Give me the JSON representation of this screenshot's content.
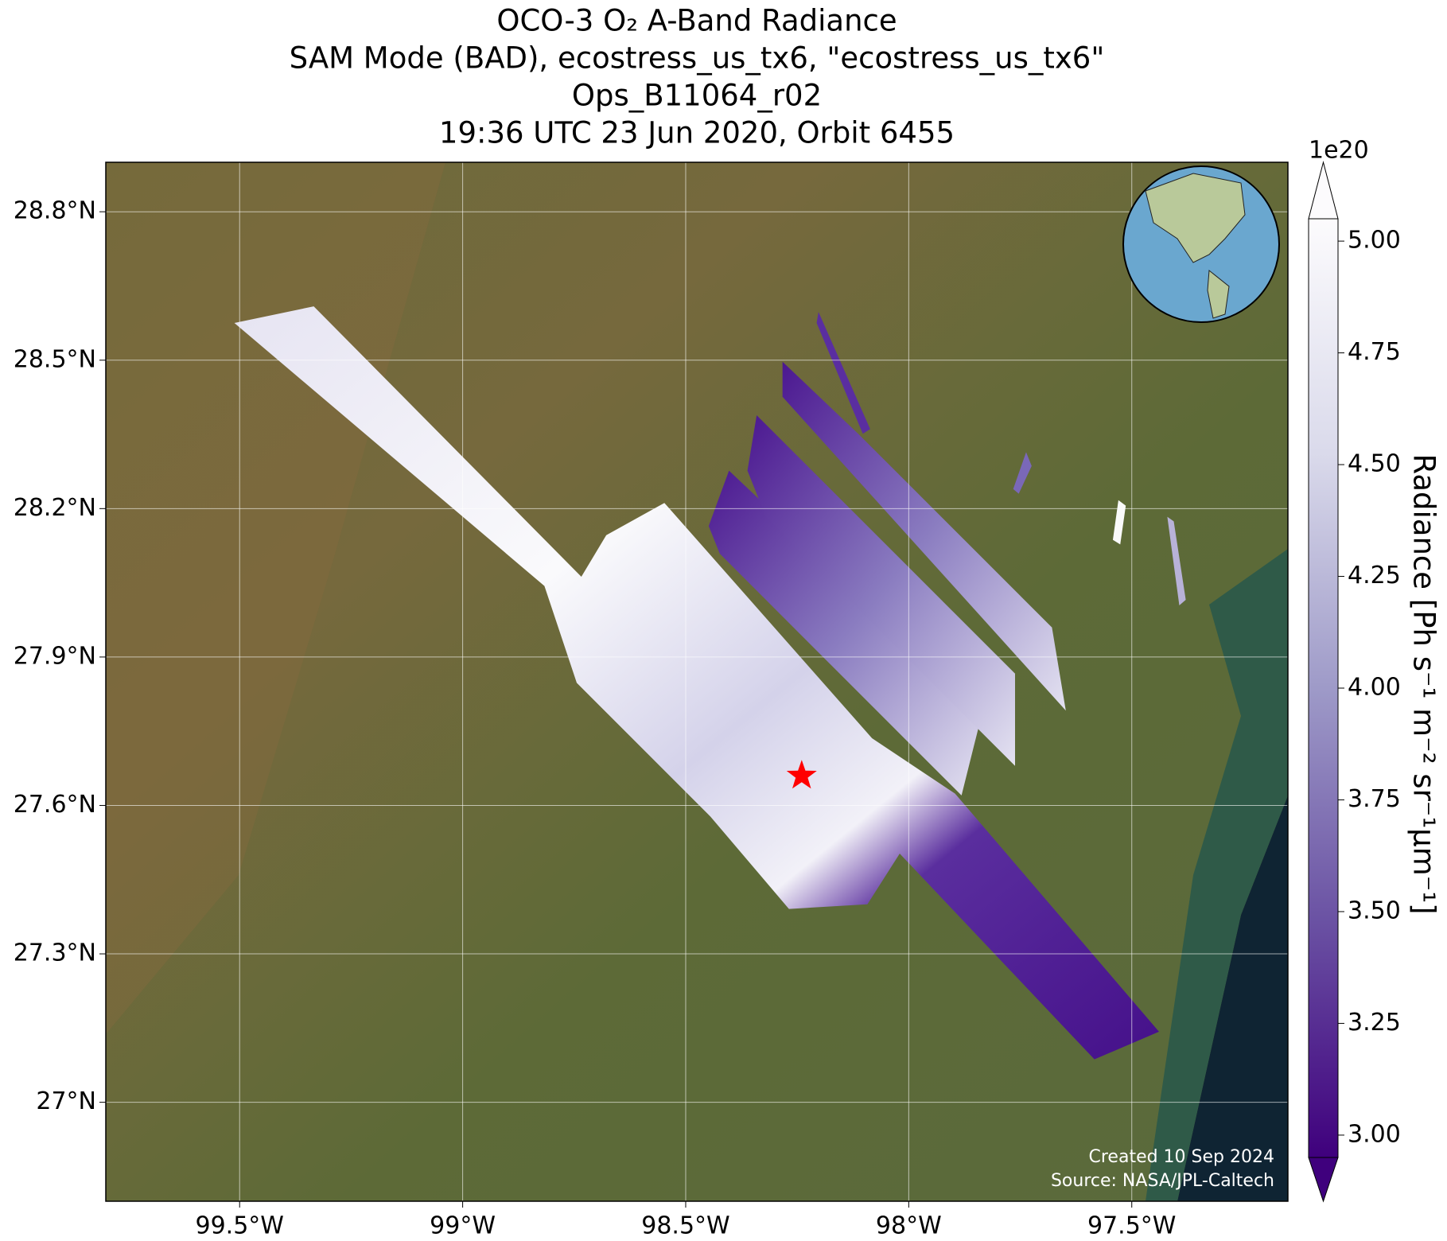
{
  "chart_data": {
    "type": "map",
    "title": [
      "OCO-3 O₂ A-Band Radiance",
      "SAM Mode (BAD), ecostress_us_tx6, \"ecostress_us_tx6\"",
      "Ops_B11064_r02",
      "19:36 UTC 23 Jun 2020, Orbit 6455"
    ],
    "xlim": [
      -99.8,
      -97.15
    ],
    "ylim": [
      26.8,
      28.9
    ],
    "xticks": [
      {
        "value": -99.5,
        "label": "99.5°W"
      },
      {
        "value": -99,
        "label": "99°W"
      },
      {
        "value": -98.5,
        "label": "98.5°W"
      },
      {
        "value": -98,
        "label": "98°W"
      },
      {
        "value": -97.5,
        "label": "97.5°W"
      }
    ],
    "yticks": [
      {
        "value": 27,
        "label": "27°N"
      },
      {
        "value": 27.3,
        "label": "27.3°N"
      },
      {
        "value": 27.6,
        "label": "27.6°N"
      },
      {
        "value": 27.9,
        "label": "27.9°N"
      },
      {
        "value": 28.2,
        "label": "28.2°N"
      },
      {
        "value": 28.5,
        "label": "28.5°N"
      },
      {
        "value": 28.8,
        "label": "28.8°N"
      }
    ],
    "grid": true,
    "marker": {
      "lon": -98.24,
      "lat": 27.66,
      "color": "#ff0000"
    },
    "colorbar": {
      "label": "Radiance [Ph s⁻¹ m⁻² sr⁻¹μm⁻¹]",
      "multiplier": "1e20",
      "clim": [
        2.95,
        5.05
      ],
      "ticks": [
        {
          "value": 3,
          "label": "3.00"
        },
        {
          "value": 3.25,
          "label": "3.25"
        },
        {
          "value": 3.5,
          "label": "3.50"
        },
        {
          "value": 3.75,
          "label": "3.75"
        },
        {
          "value": 4,
          "label": "4.00"
        },
        {
          "value": 4.25,
          "label": "4.25"
        },
        {
          "value": 4.5,
          "label": "4.50"
        },
        {
          "value": 4.75,
          "label": "4.75"
        },
        {
          "value": 5,
          "label": "5.00"
        }
      ]
    },
    "credits": [
      "Created 10 Sep 2024",
      "Source: NASA/JPL-Caltech"
    ]
  }
}
